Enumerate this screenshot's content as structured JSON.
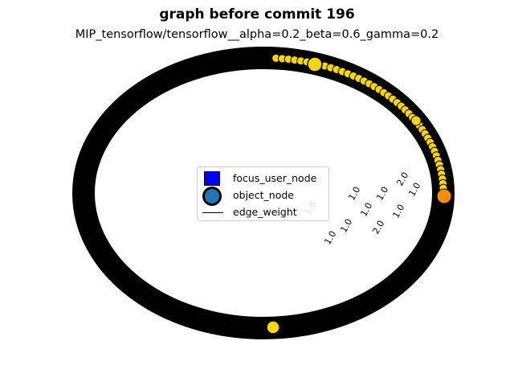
{
  "header": {
    "title": "graph before commit 196",
    "subtitle": "MIP_tensorflow/tensorflow__alpha=0.2_beta=0.6_gamma=0.2"
  },
  "legend": {
    "items": [
      {
        "label": "focus_user_node",
        "marker": "square",
        "color": "#0000ff"
      },
      {
        "label": "object_node",
        "marker": "circle",
        "color": "#1f77b4"
      },
      {
        "label": "edge_weight",
        "marker": "line",
        "color": "#000000"
      }
    ]
  },
  "colors": {
    "ring_stroke": "#000000",
    "node_fill": "#ffd700",
    "highlight_node": "#ff8c00",
    "background": "#ffffff"
  },
  "edge_labels": [
    "1.0",
    "1.0",
    "1.0",
    "1.0",
    "2.0",
    "1.0",
    "2.0",
    "1.0",
    "1.0",
    "1.0"
  ]
}
